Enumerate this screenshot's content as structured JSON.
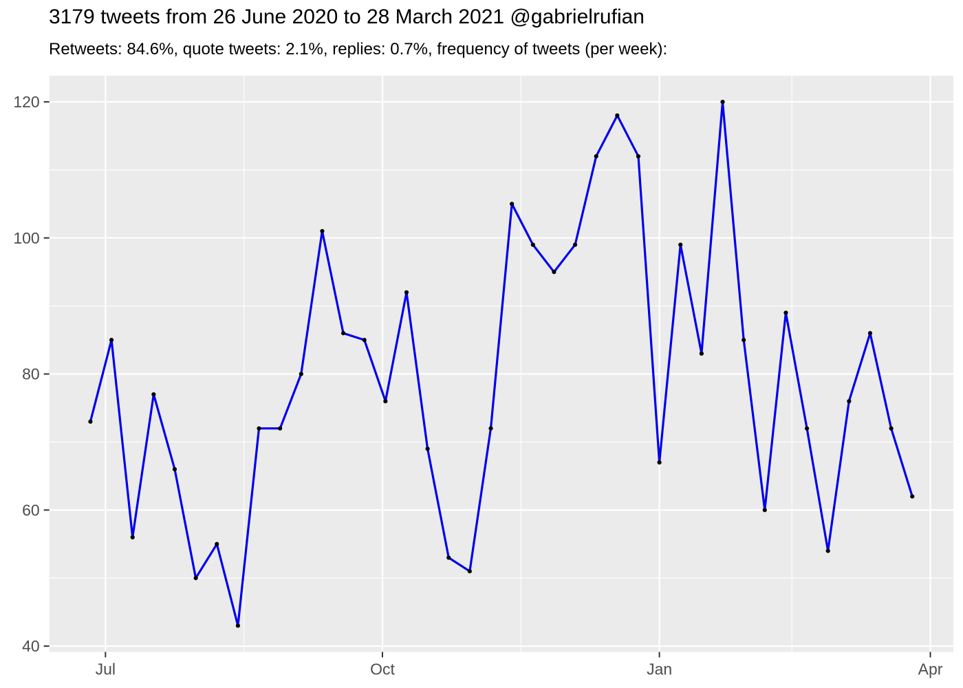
{
  "chart_data": {
    "type": "line",
    "title": "3179 tweets from 26 June 2020 to 28 March 2021 @gabrielrufian",
    "subtitle": "Retweets: 84.6%, quote tweets: 2.1%, replies: 0.7%, frequency of tweets (per week):",
    "xlabel": "",
    "ylabel": "",
    "legend": "none",
    "grid": true,
    "x": [
      "2020-06-26",
      "2020-07-03",
      "2020-07-10",
      "2020-07-17",
      "2020-07-24",
      "2020-07-31",
      "2020-08-07",
      "2020-08-14",
      "2020-08-21",
      "2020-08-28",
      "2020-09-04",
      "2020-09-11",
      "2020-09-18",
      "2020-09-25",
      "2020-10-02",
      "2020-10-09",
      "2020-10-16",
      "2020-10-23",
      "2020-10-30",
      "2020-11-06",
      "2020-11-13",
      "2020-11-20",
      "2020-11-27",
      "2020-12-04",
      "2020-12-11",
      "2020-12-18",
      "2020-12-25",
      "2021-01-01",
      "2021-01-08",
      "2021-01-15",
      "2021-01-22",
      "2021-01-29",
      "2021-02-05",
      "2021-02-12",
      "2021-02-19",
      "2021-02-26",
      "2021-03-05",
      "2021-03-12",
      "2021-03-19",
      "2021-03-26"
    ],
    "values": [
      73,
      85,
      56,
      77,
      66,
      50,
      55,
      43,
      72,
      72,
      80,
      101,
      86,
      85,
      76,
      92,
      69,
      53,
      51,
      72,
      105,
      99,
      95,
      99,
      112,
      118,
      112,
      67,
      99,
      83,
      120,
      85,
      60,
      89,
      72,
      54,
      76,
      86,
      72,
      62
    ],
    "x_axis": {
      "tick_labels": [
        "Jul",
        "Oct",
        "Jan",
        "Apr"
      ],
      "tick_dates": [
        "2020-07-01",
        "2020-10-01",
        "2021-01-01",
        "2021-04-01"
      ],
      "minor_dates": [
        "2020-08-16",
        "2020-11-16",
        "2021-02-14"
      ]
    },
    "y_axis": {
      "tick_labels": [
        "40",
        "60",
        "80",
        "100",
        "120"
      ],
      "ticks": [
        40,
        60,
        80,
        100,
        120
      ],
      "minor": [
        50,
        70,
        90,
        110
      ],
      "limits": [
        39.15,
        123.85
      ]
    },
    "colors": {
      "line": "#0000EE",
      "point": "#000000",
      "panel_bg": "#EBEBEB",
      "grid": "#FFFFFF",
      "axis_text": "#4D4D4D",
      "tick_mark": "#333333",
      "title_text": "#000000"
    }
  }
}
